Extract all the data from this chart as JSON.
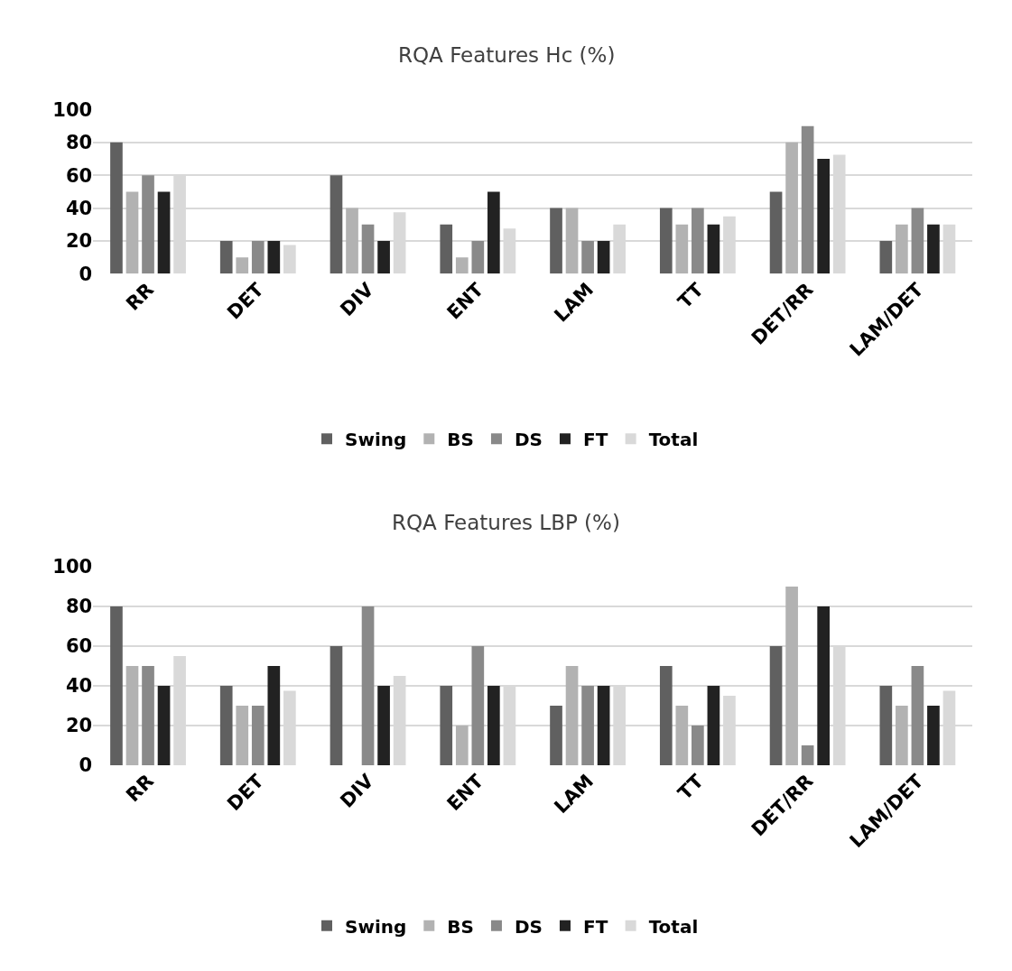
{
  "chart_data": [
    {
      "type": "bar",
      "title": "RQA Features Hc (%)",
      "categories": [
        "RR",
        "DET",
        "DIV",
        "ENT",
        "LAM",
        "TT",
        "DET/RR",
        "LAM/DET"
      ],
      "series": [
        {
          "name": "Swing",
          "color": "#606060",
          "values": [
            80,
            20,
            60,
            30,
            40,
            40,
            50,
            20
          ]
        },
        {
          "name": "BS",
          "color": "#b2b2b2",
          "values": [
            50,
            10,
            40,
            10,
            40,
            30,
            80,
            30
          ]
        },
        {
          "name": "DS",
          "color": "#898989",
          "values": [
            60,
            20,
            30,
            20,
            20,
            40,
            90,
            40
          ]
        },
        {
          "name": "FT",
          "color": "#222222",
          "values": [
            50,
            20,
            20,
            50,
            20,
            30,
            70,
            30
          ]
        },
        {
          "name": "Total",
          "color": "#d9d9d9",
          "values": [
            60,
            17.5,
            37.5,
            27.5,
            30,
            35,
            72.5,
            30
          ]
        }
      ],
      "ylim": [
        0,
        100
      ],
      "yticks": [
        0,
        20,
        40,
        60,
        80,
        100
      ],
      "grid": "y",
      "legend": "bottom"
    },
    {
      "type": "bar",
      "title": "RQA Features LBP (%)",
      "categories": [
        "RR",
        "DET",
        "DIV",
        "ENT",
        "LAM",
        "TT",
        "DET/RR",
        "LAM/DET"
      ],
      "series": [
        {
          "name": "Swing",
          "color": "#606060",
          "values": [
            80,
            40,
            60,
            40,
            30,
            50,
            60,
            40
          ]
        },
        {
          "name": "BS",
          "color": "#b2b2b2",
          "values": [
            50,
            30,
            0,
            20,
            50,
            30,
            90,
            30
          ]
        },
        {
          "name": "DS",
          "color": "#898989",
          "values": [
            50,
            30,
            80,
            60,
            40,
            20,
            10,
            50
          ]
        },
        {
          "name": "FT",
          "color": "#222222",
          "values": [
            40,
            50,
            40,
            40,
            40,
            40,
            80,
            30
          ]
        },
        {
          "name": "Total",
          "color": "#d9d9d9",
          "values": [
            55,
            37.5,
            45,
            40,
            40,
            35,
            60,
            37.5
          ]
        }
      ],
      "ylim": [
        0,
        100
      ],
      "yticks": [
        0,
        20,
        40,
        60,
        80,
        100
      ],
      "grid": "y",
      "legend": "bottom"
    }
  ]
}
